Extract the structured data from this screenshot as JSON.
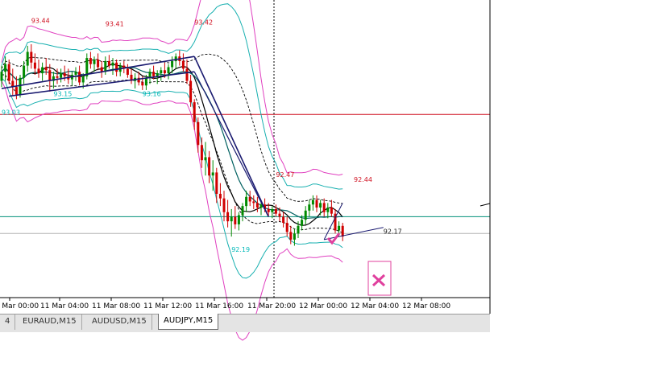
{
  "chart_data": {
    "type": "candlestick",
    "symbol": "AUDJPY",
    "timeframe": "M15",
    "ylim": [
      91.8,
      93.75
    ],
    "time_labels": [
      "12 Mar 00:00",
      "11 Mar 04:00",
      "11 Mar 08:00",
      "11 Mar 12:00",
      "11 Mar 16:00",
      "11 Mar 20:00",
      "12 Mar 00:00",
      "12 Mar 04:00",
      "12 Mar 08:00"
    ],
    "horizontal_lines": [
      {
        "name": "resistance",
        "price": 93.0,
        "color": "#d01020"
      },
      {
        "name": "level",
        "price": 92.33,
        "color": "#00907a"
      },
      {
        "name": "level-gray",
        "price": 92.22,
        "color": "#b4b4b4"
      }
    ],
    "price_labels": [
      {
        "text": "93.44",
        "price": 93.6,
        "bar": 8,
        "color": "#d01020"
      },
      {
        "text": "93.41",
        "price": 93.58,
        "bar": 28,
        "color": "#d01020"
      },
      {
        "text": "93.42",
        "price": 93.59,
        "bar": 52,
        "color": "#d01020"
      },
      {
        "text": "92.47",
        "price": 92.59,
        "bar": 74,
        "color": "#d01020"
      },
      {
        "text": "92.44",
        "price": 92.56,
        "bar": 95,
        "color": "#d01020"
      },
      {
        "text": "93.15",
        "price": 93.12,
        "bar": 14,
        "color": "#00b8b8"
      },
      {
        "text": "93.16",
        "price": 93.12,
        "bar": 38,
        "color": "#00b8b8"
      },
      {
        "text": "93.03",
        "price": 93.0,
        "bar": 0,
        "color": "#00b8b8"
      },
      {
        "text": "92.19",
        "price": 92.1,
        "bar": 62,
        "color": "#00b8b8"
      },
      {
        "text": "92.17",
        "price": 92.22,
        "bar": 103,
        "color": "#1a1a1a"
      }
    ],
    "candles": [
      [
        93.22,
        93.32,
        93.18,
        93.28
      ],
      [
        93.28,
        93.38,
        93.22,
        93.33
      ],
      [
        93.33,
        93.36,
        93.2,
        93.22
      ],
      [
        93.22,
        93.3,
        93.12,
        93.18
      ],
      [
        93.18,
        93.25,
        93.1,
        93.13
      ],
      [
        93.13,
        93.26,
        93.11,
        93.24
      ],
      [
        93.24,
        93.35,
        93.2,
        93.32
      ],
      [
        93.32,
        93.45,
        93.28,
        93.41
      ],
      [
        93.41,
        93.46,
        93.3,
        93.34
      ],
      [
        93.34,
        93.4,
        93.26,
        93.3
      ],
      [
        93.3,
        93.36,
        93.24,
        93.27
      ],
      [
        93.27,
        93.34,
        93.22,
        93.31
      ],
      [
        93.31,
        93.37,
        93.26,
        93.29
      ],
      [
        93.29,
        93.33,
        93.15,
        93.22
      ],
      [
        93.22,
        93.28,
        93.17,
        93.25
      ],
      [
        93.25,
        93.3,
        93.2,
        93.24
      ],
      [
        93.24,
        93.3,
        93.21,
        93.27
      ],
      [
        93.27,
        93.32,
        93.22,
        93.25
      ],
      [
        93.25,
        93.3,
        93.2,
        93.23
      ],
      [
        93.23,
        93.28,
        93.19,
        93.26
      ],
      [
        93.26,
        93.31,
        93.22,
        93.28
      ],
      [
        93.28,
        93.32,
        93.19,
        93.21
      ],
      [
        93.21,
        93.27,
        93.17,
        93.25
      ],
      [
        93.25,
        93.4,
        93.23,
        93.37
      ],
      [
        93.37,
        93.41,
        93.3,
        93.33
      ],
      [
        93.33,
        93.38,
        93.28,
        93.36
      ],
      [
        93.36,
        93.4,
        93.29,
        93.31
      ],
      [
        93.31,
        93.35,
        93.24,
        93.28
      ],
      [
        93.28,
        93.38,
        93.26,
        93.35
      ],
      [
        93.35,
        93.39,
        93.3,
        93.32
      ],
      [
        93.32,
        93.37,
        93.26,
        93.34
      ],
      [
        93.34,
        93.36,
        93.25,
        93.28
      ],
      [
        93.28,
        93.34,
        93.25,
        93.32
      ],
      [
        93.32,
        93.35,
        93.27,
        93.3
      ],
      [
        93.3,
        93.33,
        93.24,
        93.26
      ],
      [
        93.26,
        93.3,
        93.2,
        93.22
      ],
      [
        93.22,
        93.27,
        93.17,
        93.24
      ],
      [
        93.24,
        93.28,
        93.19,
        93.21
      ],
      [
        93.21,
        93.25,
        93.16,
        93.19
      ],
      [
        93.19,
        93.26,
        93.16,
        93.24
      ],
      [
        93.24,
        93.3,
        93.2,
        93.28
      ],
      [
        93.28,
        93.32,
        93.23,
        93.25
      ],
      [
        93.25,
        93.29,
        93.2,
        93.27
      ],
      [
        93.27,
        93.31,
        93.22,
        93.29
      ],
      [
        93.29,
        93.34,
        93.24,
        93.27
      ],
      [
        93.27,
        93.33,
        93.23,
        93.31
      ],
      [
        93.31,
        93.38,
        93.27,
        93.35
      ],
      [
        93.35,
        93.4,
        93.3,
        93.38
      ],
      [
        93.38,
        93.42,
        93.32,
        93.35
      ],
      [
        93.35,
        93.4,
        93.28,
        93.3
      ],
      [
        93.3,
        93.36,
        93.2,
        93.22
      ],
      [
        93.22,
        93.26,
        93.05,
        93.08
      ],
      [
        93.08,
        93.1,
        92.9,
        92.95
      ],
      [
        92.95,
        92.98,
        92.75,
        92.8
      ],
      [
        92.8,
        92.85,
        92.65,
        92.7
      ],
      [
        92.7,
        92.82,
        92.6,
        92.72
      ],
      [
        92.72,
        92.76,
        92.55,
        92.6
      ],
      [
        92.6,
        92.7,
        92.5,
        92.62
      ],
      [
        92.62,
        92.65,
        92.42,
        92.48
      ],
      [
        92.48,
        92.55,
        92.4,
        92.45
      ],
      [
        92.45,
        92.5,
        92.3,
        92.36
      ],
      [
        92.36,
        92.44,
        92.26,
        92.3
      ],
      [
        92.3,
        92.38,
        92.2,
        92.33
      ],
      [
        92.33,
        92.4,
        92.25,
        92.28
      ],
      [
        92.28,
        92.36,
        92.24,
        92.34
      ],
      [
        92.34,
        92.42,
        92.3,
        92.4
      ],
      [
        92.4,
        92.5,
        92.36,
        92.46
      ],
      [
        92.46,
        92.5,
        92.4,
        92.43
      ],
      [
        92.43,
        92.47,
        92.38,
        92.42
      ],
      [
        92.42,
        92.46,
        92.36,
        92.39
      ],
      [
        92.39,
        92.44,
        92.34,
        92.41
      ],
      [
        92.41,
        92.45,
        92.36,
        92.38
      ],
      [
        92.38,
        92.42,
        92.33,
        92.36
      ],
      [
        92.36,
        92.4,
        92.32,
        92.38
      ],
      [
        92.38,
        92.41,
        92.33,
        92.35
      ],
      [
        92.35,
        92.39,
        92.3,
        92.33
      ],
      [
        92.33,
        92.36,
        92.26,
        92.29
      ],
      [
        92.29,
        92.33,
        92.2,
        92.23
      ],
      [
        92.23,
        92.27,
        92.15,
        92.18
      ],
      [
        92.18,
        92.25,
        92.14,
        92.22
      ],
      [
        92.22,
        92.3,
        92.19,
        92.27
      ],
      [
        92.27,
        92.34,
        92.24,
        92.31
      ],
      [
        92.31,
        92.4,
        92.28,
        92.37
      ],
      [
        92.37,
        92.44,
        92.33,
        92.41
      ],
      [
        92.41,
        92.47,
        92.37,
        92.44
      ],
      [
        92.44,
        92.47,
        92.36,
        92.39
      ],
      [
        92.39,
        92.44,
        92.34,
        92.42
      ],
      [
        92.42,
        92.45,
        92.33,
        92.36
      ],
      [
        92.36,
        92.42,
        92.32,
        92.39
      ],
      [
        92.39,
        92.44,
        92.33,
        92.35
      ],
      [
        92.35,
        92.38,
        92.22,
        92.24
      ],
      [
        92.24,
        92.3,
        92.2,
        92.27
      ],
      [
        92.27,
        92.29,
        92.17,
        92.2
      ]
    ]
  },
  "tabs": [
    {
      "label": "4"
    },
    {
      "label": "EURAUD,M15"
    },
    {
      "label": "AUDUSD,M15"
    },
    {
      "label": "AUDJPY,M15"
    }
  ]
}
